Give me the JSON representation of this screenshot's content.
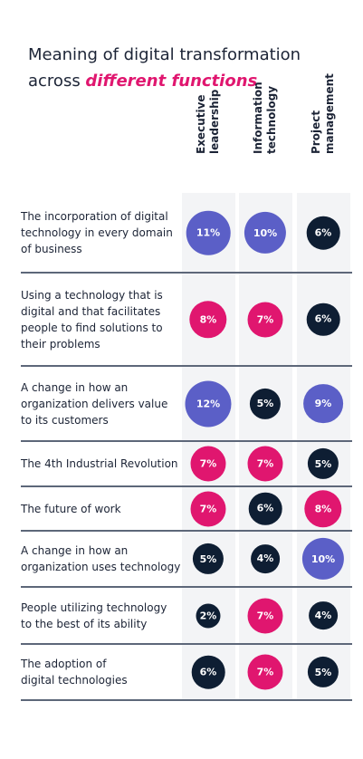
{
  "title": {
    "line1": "Meaning of digital transformation",
    "line2_prefix": "across ",
    "line2_accent": "different functions"
  },
  "colors": {
    "large": "#5b5fc7",
    "medium": "#e0166f",
    "small": "#0e1e33",
    "accent": "#e0166f"
  },
  "chart_data": {
    "type": "table",
    "columns": [
      "Executive\nleadership",
      "Information\ntechnology",
      "Project\nmanagement"
    ],
    "rows": [
      {
        "label": "The incorporation of digital\ntechnology in every domain\nof business",
        "values": [
          11,
          10,
          6
        ]
      },
      {
        "label": "Using a technology that is\ndigital and that facilitates\npeople to find solutions to\ntheir problems",
        "values": [
          8,
          7,
          6
        ]
      },
      {
        "label": "A change in how an\norganization delivers value\nto its customers",
        "values": [
          12,
          5,
          9
        ]
      },
      {
        "label": "The 4th Industrial Revolution",
        "values": [
          7,
          7,
          5
        ]
      },
      {
        "label": "The future of work",
        "values": [
          7,
          6,
          8
        ]
      },
      {
        "label": "A change in how an\norganization uses technology",
        "values": [
          5,
          4,
          10
        ]
      },
      {
        "label": "People utilizing technology\nto the best of its ability",
        "values": [
          2,
          7,
          4
        ]
      },
      {
        "label": "The adoption of\ndigital technologies",
        "values": [
          6,
          7,
          5
        ]
      }
    ],
    "value_suffix": "%"
  }
}
